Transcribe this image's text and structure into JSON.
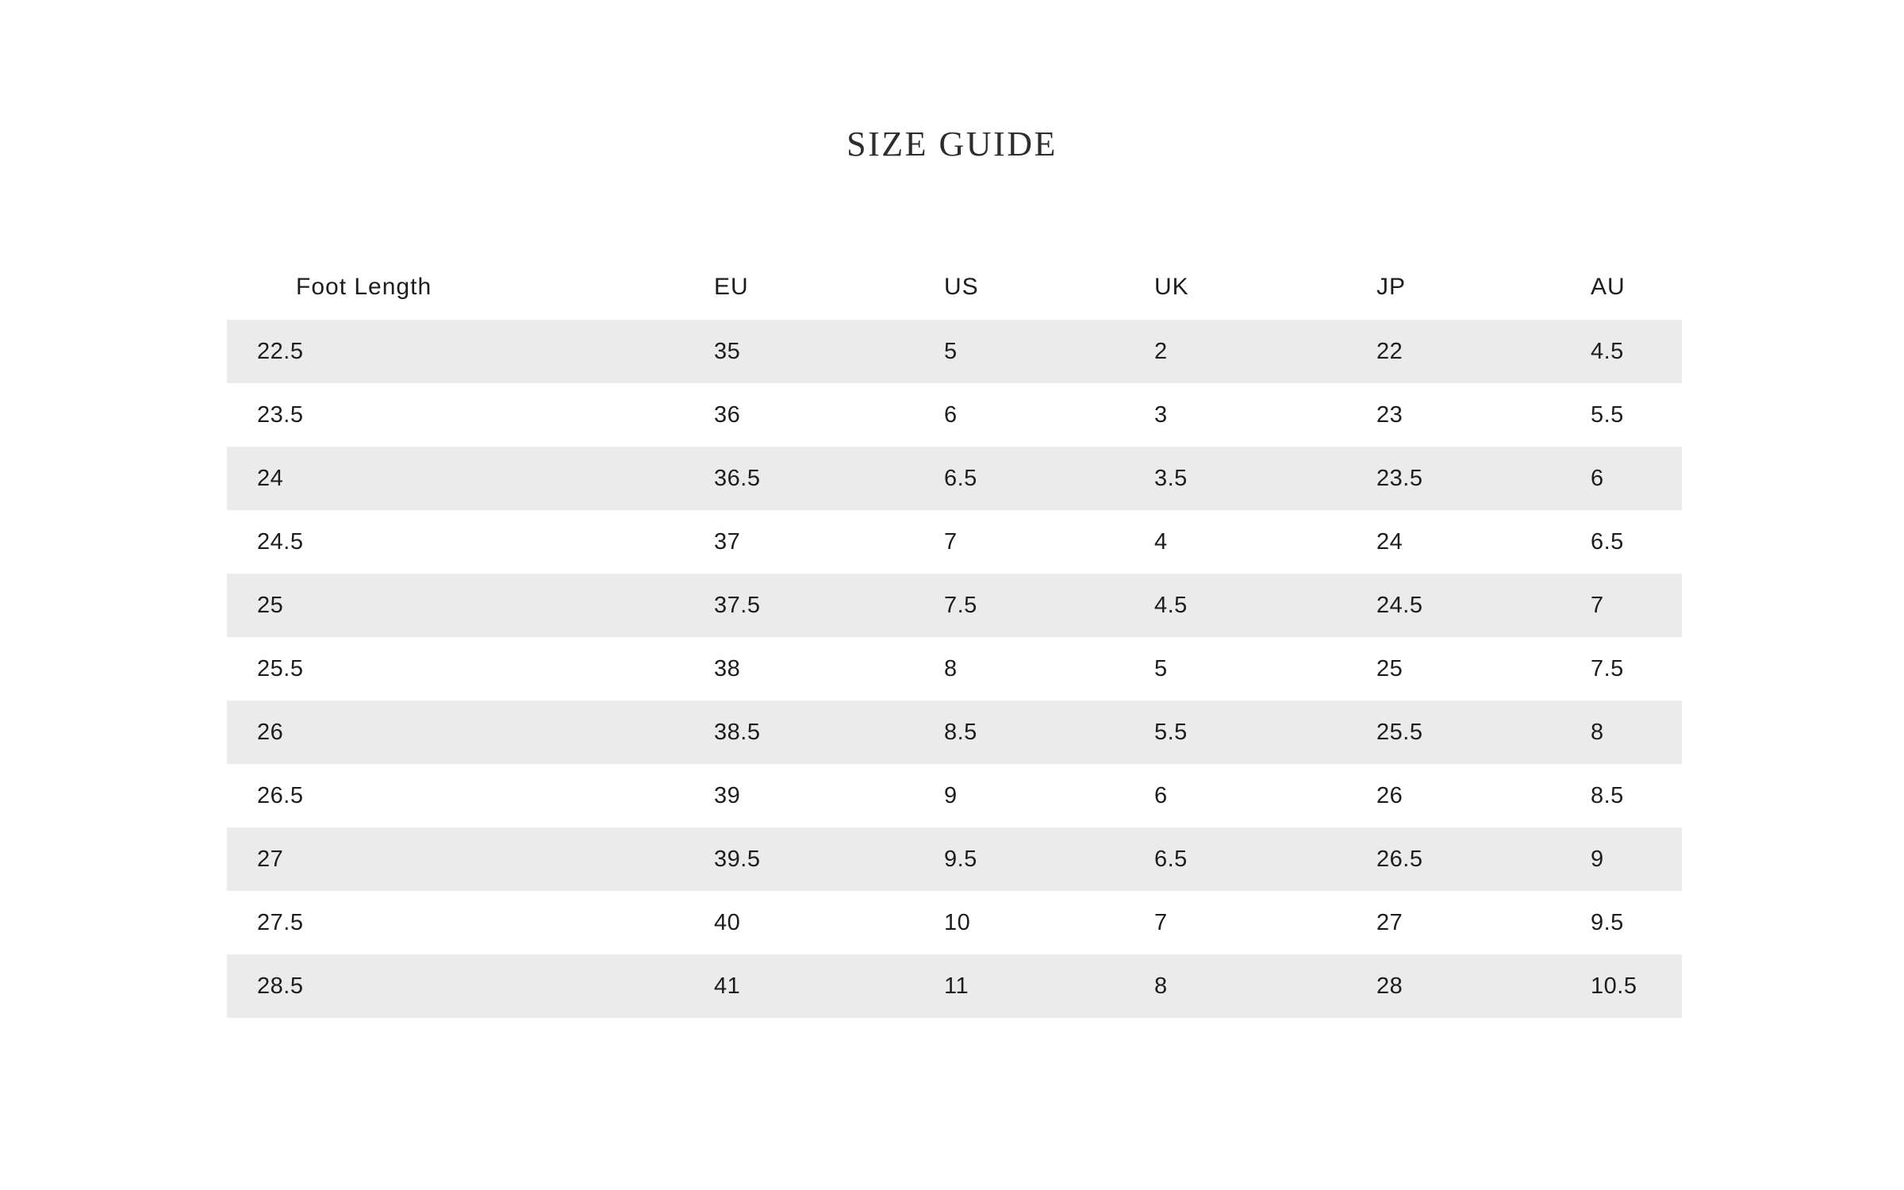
{
  "page": {
    "title": "SIZE GUIDE"
  },
  "colors": {
    "stripe": "#ebebeb",
    "text": "#1d1d1d",
    "title": "#2d2d2d",
    "background": "#ffffff"
  },
  "table": {
    "columns": [
      "Foot Length",
      "EU",
      "US",
      "UK",
      "JP",
      "AU"
    ],
    "rows": [
      [
        "22.5",
        "35",
        "5",
        "2",
        "22",
        "4.5"
      ],
      [
        "23.5",
        "36",
        "6",
        "3",
        "23",
        "5.5"
      ],
      [
        "24",
        "36.5",
        "6.5",
        "3.5",
        "23.5",
        "6"
      ],
      [
        "24.5",
        "37",
        "7",
        "4",
        "24",
        "6.5"
      ],
      [
        "25",
        "37.5",
        "7.5",
        "4.5",
        "24.5",
        "7"
      ],
      [
        "25.5",
        "38",
        "8",
        "5",
        "25",
        "7.5"
      ],
      [
        "26",
        "38.5",
        "8.5",
        "5.5",
        "25.5",
        "8"
      ],
      [
        "26.5",
        "39",
        "9",
        "6",
        "26",
        "8.5"
      ],
      [
        "27",
        "39.5",
        "9.5",
        "6.5",
        "26.5",
        "9"
      ],
      [
        "27.5",
        "40",
        "10",
        "7",
        "27",
        "9.5"
      ],
      [
        "28.5",
        "41",
        "11",
        "8",
        "28",
        "10.5"
      ]
    ]
  }
}
